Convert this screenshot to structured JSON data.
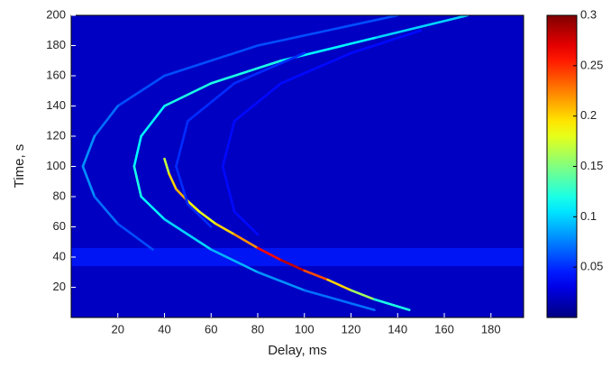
{
  "chart_data": {
    "type": "heatmap",
    "xlabel": "Delay, ms",
    "ylabel": "Time, s",
    "xlim": [
      0,
      194
    ],
    "ylim": [
      0,
      200
    ],
    "xticks": [
      20,
      40,
      60,
      80,
      100,
      120,
      140,
      160,
      180
    ],
    "yticks": [
      20,
      40,
      60,
      80,
      100,
      120,
      140,
      160,
      180,
      200
    ],
    "clim": [
      0,
      0.3
    ],
    "cticks": [
      0.05,
      0.1,
      0.15,
      0.2,
      0.25,
      0.3
    ],
    "colormap": "jet",
    "background": 0.02,
    "band": {
      "ylim": [
        34,
        46
      ],
      "value": 0.045
    },
    "series": [
      {
        "x": [
          140,
          80,
          40,
          20,
          10,
          5,
          10,
          20,
          35
        ],
        "y": [
          200,
          180,
          160,
          140,
          120,
          100,
          80,
          62,
          45
        ],
        "values": [
          0.06,
          0.06,
          0.06,
          0.07,
          0.08,
          0.08,
          0.07,
          0.06,
          0.05
        ]
      },
      {
        "x": [
          170,
          130,
          90,
          60,
          40,
          30,
          27,
          30,
          40,
          60,
          80,
          100,
          130
        ],
        "y": [
          200,
          185,
          170,
          155,
          140,
          120,
          100,
          80,
          65,
          45,
          30,
          18,
          5
        ],
        "values": [
          0.1,
          0.11,
          0.12,
          0.12,
          0.11,
          0.11,
          0.12,
          0.11,
          0.1,
          0.09,
          0.08,
          0.07,
          0.06
        ]
      },
      {
        "x": [
          40,
          42,
          45,
          50,
          55,
          62,
          70,
          80,
          90,
          100,
          110,
          120,
          130,
          145
        ],
        "y": [
          105,
          95,
          85,
          77,
          70,
          62,
          55,
          46,
          38,
          31,
          25,
          18,
          12,
          5
        ],
        "values": [
          0.17,
          0.2,
          0.21,
          0.19,
          0.18,
          0.2,
          0.22,
          0.26,
          0.28,
          0.24,
          0.2,
          0.16,
          0.12,
          0.08
        ]
      },
      {
        "x": [
          100,
          70,
          50,
          45,
          50,
          60
        ],
        "y": [
          175,
          155,
          130,
          100,
          75,
          60
        ],
        "values": [
          0.05,
          0.05,
          0.05,
          0.05,
          0.05,
          0.04
        ]
      },
      {
        "x": [
          150,
          120,
          90,
          70,
          65,
          70,
          80
        ],
        "y": [
          190,
          175,
          155,
          130,
          100,
          70,
          55
        ],
        "values": [
          0.04,
          0.04,
          0.04,
          0.04,
          0.04,
          0.04,
          0.04
        ]
      }
    ]
  }
}
